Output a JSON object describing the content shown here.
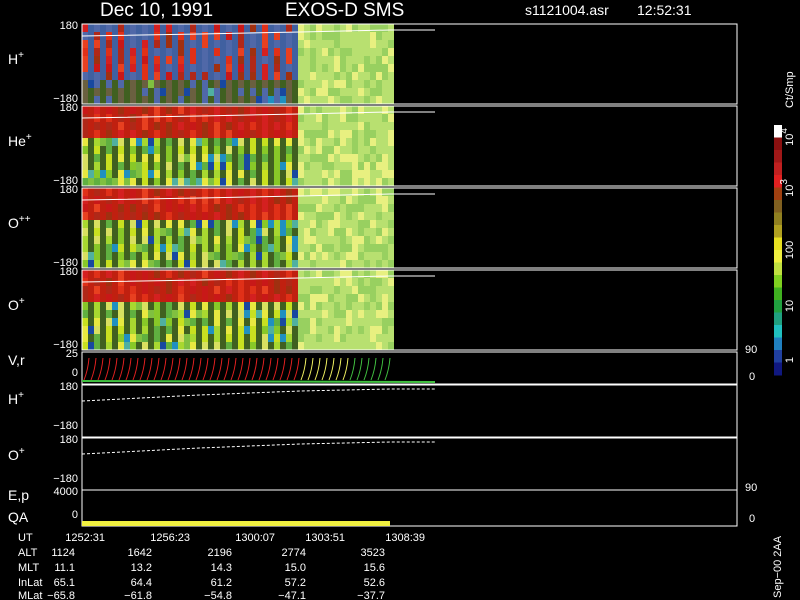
{
  "header": {
    "date": "Dec 10, 1991",
    "instrument": "EXOS-D SMS",
    "file": "s1121004.asr",
    "time": "12:52:31"
  },
  "spectrograms": [
    {
      "label": {
        "base": "H",
        "sup": "+"
      },
      "top": "180",
      "bottom": "−180"
    },
    {
      "label": {
        "base": "He",
        "sup": "+"
      },
      "top": "180",
      "bottom": "−180"
    },
    {
      "label": {
        "base": "O",
        "sup": "++"
      },
      "top": "180",
      "bottom": "−180"
    },
    {
      "label": {
        "base": "O",
        "sup": "+"
      },
      "top": "180",
      "bottom": "−180"
    }
  ],
  "line_panels": [
    {
      "label": "V,r",
      "top": "25",
      "bottom": "0",
      "right_top": "90",
      "right_bottom": "0"
    },
    {
      "label": {
        "base": "H",
        "sup": "+"
      },
      "top": "180",
      "bottom": "−180"
    },
    {
      "label": {
        "base": "O",
        "sup": "+"
      },
      "top": "180",
      "bottom": "−180"
    },
    {
      "label": "E,p",
      "label2": "QA",
      "top": "4000",
      "bottom": "0",
      "right_top": "90",
      "right_bottom": "0"
    }
  ],
  "colorbar": {
    "unit": "Ct/Smp",
    "ticks": [
      {
        "base": "10",
        "sup": "4"
      },
      {
        "base": "10",
        "sup": "3"
      },
      "100",
      "10",
      "1"
    ]
  },
  "footer_note": "Sep−00  2AA",
  "table": {
    "rows": [
      [
        "UT",
        "1252:31",
        "1256:23",
        "1300:07",
        "1303:51",
        "1308:39"
      ],
      [
        "ALT",
        "1124",
        "1642",
        "2196",
        "2774",
        "3523"
      ],
      [
        "MLT",
        "11.1",
        "13.2",
        "14.3",
        "15.0",
        "15.6"
      ],
      [
        "InLat",
        "65.1",
        "64.4",
        "61.2",
        "57.2",
        "52.6"
      ],
      [
        "MLat",
        "−65.8",
        "−61.8",
        "−54.8",
        "−47.1",
        "−37.7"
      ]
    ]
  }
}
